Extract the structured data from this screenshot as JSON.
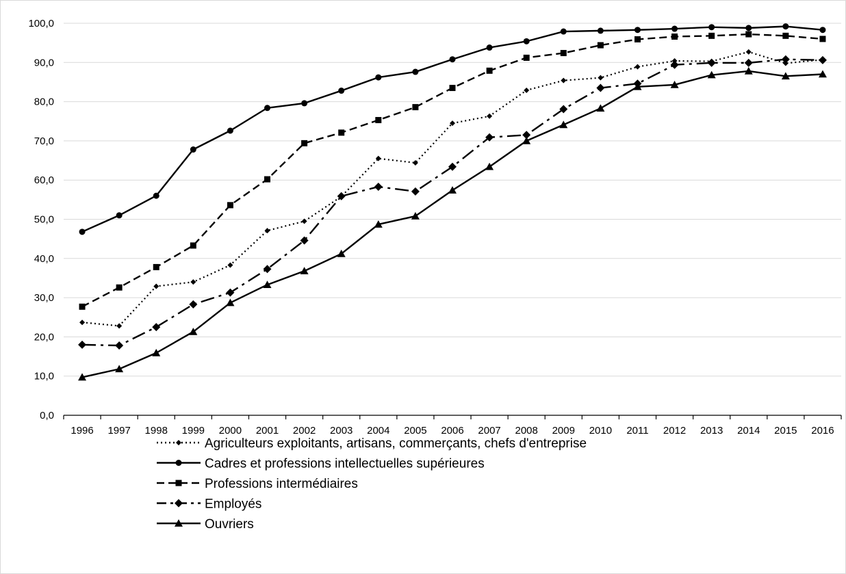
{
  "chart_data": {
    "type": "line",
    "title": "",
    "xlabel": "",
    "ylabel": "",
    "x": [
      "1996",
      "1997",
      "1998",
      "1999",
      "2000",
      "2001",
      "2002",
      "2003",
      "2004",
      "2005",
      "2006",
      "2007",
      "2008",
      "2009",
      "2010",
      "2011",
      "2012",
      "2013",
      "2014",
      "2015",
      "2016"
    ],
    "ylim": [
      0,
      100
    ],
    "y_ticks": [
      "0,0",
      "10,0",
      "20,0",
      "30,0",
      "40,0",
      "50,0",
      "60,0",
      "70,0",
      "80,0",
      "90,0",
      "100,0"
    ],
    "grid": "horizontal",
    "legend_position": "bottom",
    "series": [
      {
        "name": "Agriculteurs exploitants, artisans, commerçants, chefs d'entreprise",
        "marker": "diamond-small",
        "line_style": "dotted",
        "values": [
          23.7,
          22.8,
          32.9,
          34.0,
          38.3,
          47.1,
          49.5,
          55.8,
          65.5,
          64.4,
          74.5,
          76.3,
          82.9,
          85.4,
          86.1,
          88.9,
          90.4,
          90.3,
          92.7,
          89.8,
          90.7
        ]
      },
      {
        "name": "Cadres et professions intellectuelles supérieures",
        "marker": "circle",
        "line_style": "solid",
        "values": [
          46.8,
          51.0,
          56.0,
          67.8,
          72.6,
          78.4,
          79.6,
          82.8,
          86.2,
          87.6,
          90.8,
          93.8,
          95.4,
          97.9,
          98.1,
          98.3,
          98.6,
          99.0,
          98.8,
          99.2,
          98.3
        ]
      },
      {
        "name": "Professions intermédiaires",
        "marker": "square",
        "line_style": "dashed",
        "values": [
          27.7,
          32.6,
          37.8,
          43.3,
          53.6,
          60.2,
          69.4,
          72.1,
          75.3,
          78.6,
          83.5,
          87.9,
          91.2,
          92.4,
          94.4,
          95.9,
          96.6,
          96.8,
          97.2,
          96.8,
          96.0
        ]
      },
      {
        "name": "Employés",
        "marker": "diamond",
        "line_style": "dashdot",
        "values": [
          18.0,
          17.8,
          22.5,
          28.3,
          31.3,
          37.3,
          44.6,
          55.9,
          58.3,
          57.1,
          63.4,
          70.9,
          71.5,
          78.1,
          83.5,
          84.6,
          89.4,
          89.9,
          89.9,
          90.8,
          90.6
        ]
      },
      {
        "name": "Ouvriers",
        "marker": "triangle",
        "line_style": "solid",
        "values": [
          9.7,
          11.8,
          15.9,
          21.3,
          28.7,
          33.3,
          36.8,
          41.2,
          48.7,
          50.8,
          57.4,
          63.4,
          70.0,
          74.1,
          78.3,
          83.8,
          84.3,
          86.8,
          87.8,
          86.5,
          87.0
        ]
      }
    ],
    "colors": {
      "line": "#000000",
      "grid": "#d9d9d9",
      "axis": "#000000",
      "frame": "#d9d9d9"
    }
  }
}
